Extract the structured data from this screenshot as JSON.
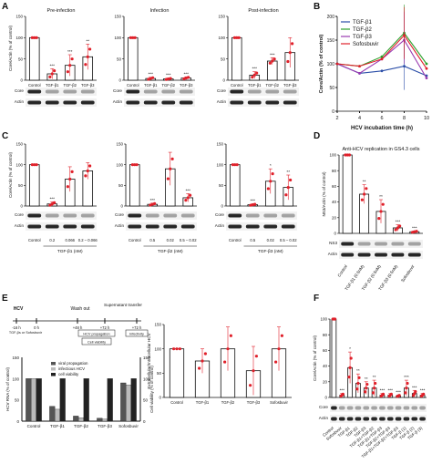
{
  "colors": {
    "red": "#e0202a",
    "blue": "#2b4ea8",
    "green": "#2aa02a",
    "purple": "#9a3ab0",
    "black": "#111111",
    "gray": "#9a9a9a"
  },
  "panels": {
    "A": "A",
    "B": "B",
    "C": "C",
    "D": "D",
    "E": "E",
    "F": "F"
  },
  "chart_data": [
    {
      "type": "bar",
      "panel": "A",
      "title": "Pre-infection",
      "ylabel": "Core/Actin (% of control)",
      "ylim": [
        0,
        150
      ],
      "categories": [
        "Control",
        "TGF-β1",
        "TGF-β2",
        "TGF-β3"
      ],
      "values": [
        100,
        15,
        35,
        55
      ],
      "errors": [
        0,
        12,
        25,
        30
      ],
      "sig": [
        "",
        "***",
        "***",
        "**"
      ],
      "blot_rows": [
        "Core",
        "Actin"
      ]
    },
    {
      "type": "bar",
      "panel": "A",
      "title": "Infection",
      "ylim": [
        0,
        150
      ],
      "categories": [
        "Control",
        "TGF-β1",
        "TGF-β2",
        "TGF-β3"
      ],
      "values": [
        100,
        4,
        3,
        5
      ],
      "errors": [
        0,
        3,
        2,
        3
      ],
      "sig": [
        "",
        "***",
        "***",
        "***"
      ]
    },
    {
      "type": "bar",
      "panel": "A",
      "title": "Post-infection",
      "ylim": [
        0,
        150
      ],
      "categories": [
        "Control",
        "TGF-β1",
        "TGF-β2",
        "TGF-β3"
      ],
      "values": [
        100,
        12,
        45,
        65
      ],
      "errors": [
        0,
        8,
        8,
        35
      ],
      "sig": [
        "",
        "***",
        "***",
        ""
      ]
    },
    {
      "type": "line",
      "panel": "B",
      "xlabel": "HCV incubation time (h)",
      "ylabel": "Core/Actin (% of control)",
      "xlim": [
        2,
        10
      ],
      "ylim": [
        0,
        200
      ],
      "x": [
        2,
        4,
        6,
        8,
        10
      ],
      "series": [
        {
          "name": "TGF-β1",
          "color": "#2b4ea8",
          "values": [
            100,
            80,
            85,
            95,
            75
          ]
        },
        {
          "name": "TGF-β2",
          "color": "#2aa02a",
          "values": [
            100,
            95,
            115,
            165,
            100
          ]
        },
        {
          "name": "TGF-β3",
          "color": "#9a3ab0",
          "values": [
            100,
            80,
            110,
            150,
            70
          ]
        },
        {
          "name": "Sofosbuvir",
          "color": "#e0202a",
          "values": [
            100,
            95,
            110,
            160,
            90
          ]
        }
      ]
    },
    {
      "type": "bar",
      "panel": "C",
      "ylabel": "Core/Actin (% of control)",
      "ylim": [
        0,
        150
      ],
      "categories": [
        "Control",
        "0.2",
        "0.066",
        "0.2 – 0.066"
      ],
      "values": [
        100,
        5,
        65,
        85
      ],
      "errors": [
        0,
        5,
        30,
        20
      ],
      "sig": [
        "",
        "***",
        "",
        ""
      ],
      "group": "TGF-β1 (nM)",
      "blot_rows": [
        "Core",
        "Actin"
      ]
    },
    {
      "type": "bar",
      "panel": "C",
      "ylim": [
        0,
        150
      ],
      "categories": [
        "Control",
        "0.5",
        "0.02",
        "0.5 – 0.02"
      ],
      "values": [
        100,
        4,
        90,
        20
      ],
      "errors": [
        0,
        3,
        40,
        10
      ],
      "sig": [
        "",
        "***",
        "",
        "***"
      ],
      "group": "TGF-β2 (nM)"
    },
    {
      "type": "bar",
      "panel": "C",
      "ylim": [
        0,
        150
      ],
      "categories": [
        "Control",
        "0.5",
        "0.02",
        "0.5 – 0.02"
      ],
      "values": [
        100,
        3,
        60,
        45
      ],
      "errors": [
        0,
        2,
        30,
        30
      ],
      "sig": [
        "",
        "***",
        "*",
        "**"
      ],
      "group": "TGF-β3 (nM)"
    },
    {
      "type": "bar",
      "panel": "D",
      "title": "Anti-HCV replication in GS4.3 cells",
      "ylabel": "NS3/Actin (% of control)",
      "ylim": [
        0,
        100
      ],
      "categories": [
        "Control",
        "TGF-β1 (0.5nM)",
        "TGF-β2 (0.5nM)",
        "TGF-β3 (0.5nM)",
        "Sofosbuvir"
      ],
      "values": [
        100,
        50,
        28,
        7,
        2
      ],
      "errors": [
        0,
        12,
        15,
        4,
        1
      ],
      "sig": [
        "",
        "**",
        "**",
        "***",
        "***"
      ],
      "blot_rows": [
        "NS3",
        "Actin"
      ]
    },
    {
      "type": "bar",
      "panel": "E",
      "ylabel": "HCV RNA (% of control)",
      "y2label": "Cell viability (% of control)",
      "ylim": [
        0,
        150
      ],
      "categories": [
        "Control",
        "TGF-β1",
        "TGF-β2",
        "TGF-β3",
        "Sofosbuvir"
      ],
      "series": [
        {
          "name": "viral propagation",
          "values": [
            100,
            35,
            12,
            7,
            90
          ]
        },
        {
          "name": "infectious HCV",
          "values": [
            100,
            28,
            8,
            5,
            85
          ]
        },
        {
          "name": "cell viability",
          "values": [
            100,
            100,
            100,
            100,
            100
          ]
        }
      ]
    },
    {
      "type": "bar",
      "panel": "E",
      "ylabel": "Extracellular/Intracellular HCV",
      "ylim": [
        0,
        150
      ],
      "categories": [
        "Control",
        "TGF-β1",
        "TGF-β2",
        "TGF-β3",
        "Sofosbuvir"
      ],
      "values": [
        100,
        75,
        100,
        55,
        100
      ],
      "errors": [
        0,
        25,
        45,
        50,
        45
      ]
    },
    {
      "type": "bar",
      "panel": "F",
      "ylabel": "Core/Actin (% of control)",
      "ylim": [
        0,
        100
      ],
      "categories": [
        "Control",
        "Sofosbuvir",
        "TGF-β1",
        "TGF-β2",
        "TGF-β3",
        "TGF-β1+TGF-β2",
        "TGF-β1+TGF-β3",
        "TGF-β2+TGF-β3",
        "TGF-β1+TGF-β2+TGF-β3",
        "TGF-β (1)",
        "TGF-β (2)",
        "TGF-β (3)"
      ],
      "values": [
        100,
        3,
        38,
        18,
        12,
        12,
        3,
        3,
        2,
        12,
        5,
        3
      ],
      "errors": [
        0,
        2,
        20,
        12,
        8,
        10,
        2,
        2,
        1,
        10,
        4,
        2
      ],
      "sig": [
        "",
        "***",
        "*",
        "**",
        "**",
        "**",
        "***",
        "***",
        "***",
        "***",
        "***",
        "***"
      ],
      "blot_rows": [
        "Core",
        "Actin"
      ]
    }
  ],
  "labels": {
    "core": "Core",
    "actin": "Actin",
    "ns3": "NS3",
    "control": "Control",
    "sofosbuvir": "Sofosbuvir",
    "tgfb1_nm": "TGF-β1 (nM)",
    "tgfb2_nm": "TGF-β2 (nM)",
    "tgfb3_nm": "TGF-β3 (nM)",
    "e_hcv": "HCV",
    "e_wash": "Wash out",
    "e_transfer": "Supernatant transfer",
    "e_t0": "-16 h",
    "e_t1": "0 h",
    "e_t2": "+48 h",
    "e_t3": "+72 h",
    "e_t4": "+72 h",
    "e_prop": "HCV propagation",
    "e_viab": "Cell viability",
    "e_infect": "Infectivity",
    "e_tgf": "TGF-βs or Sofosbuvir"
  }
}
